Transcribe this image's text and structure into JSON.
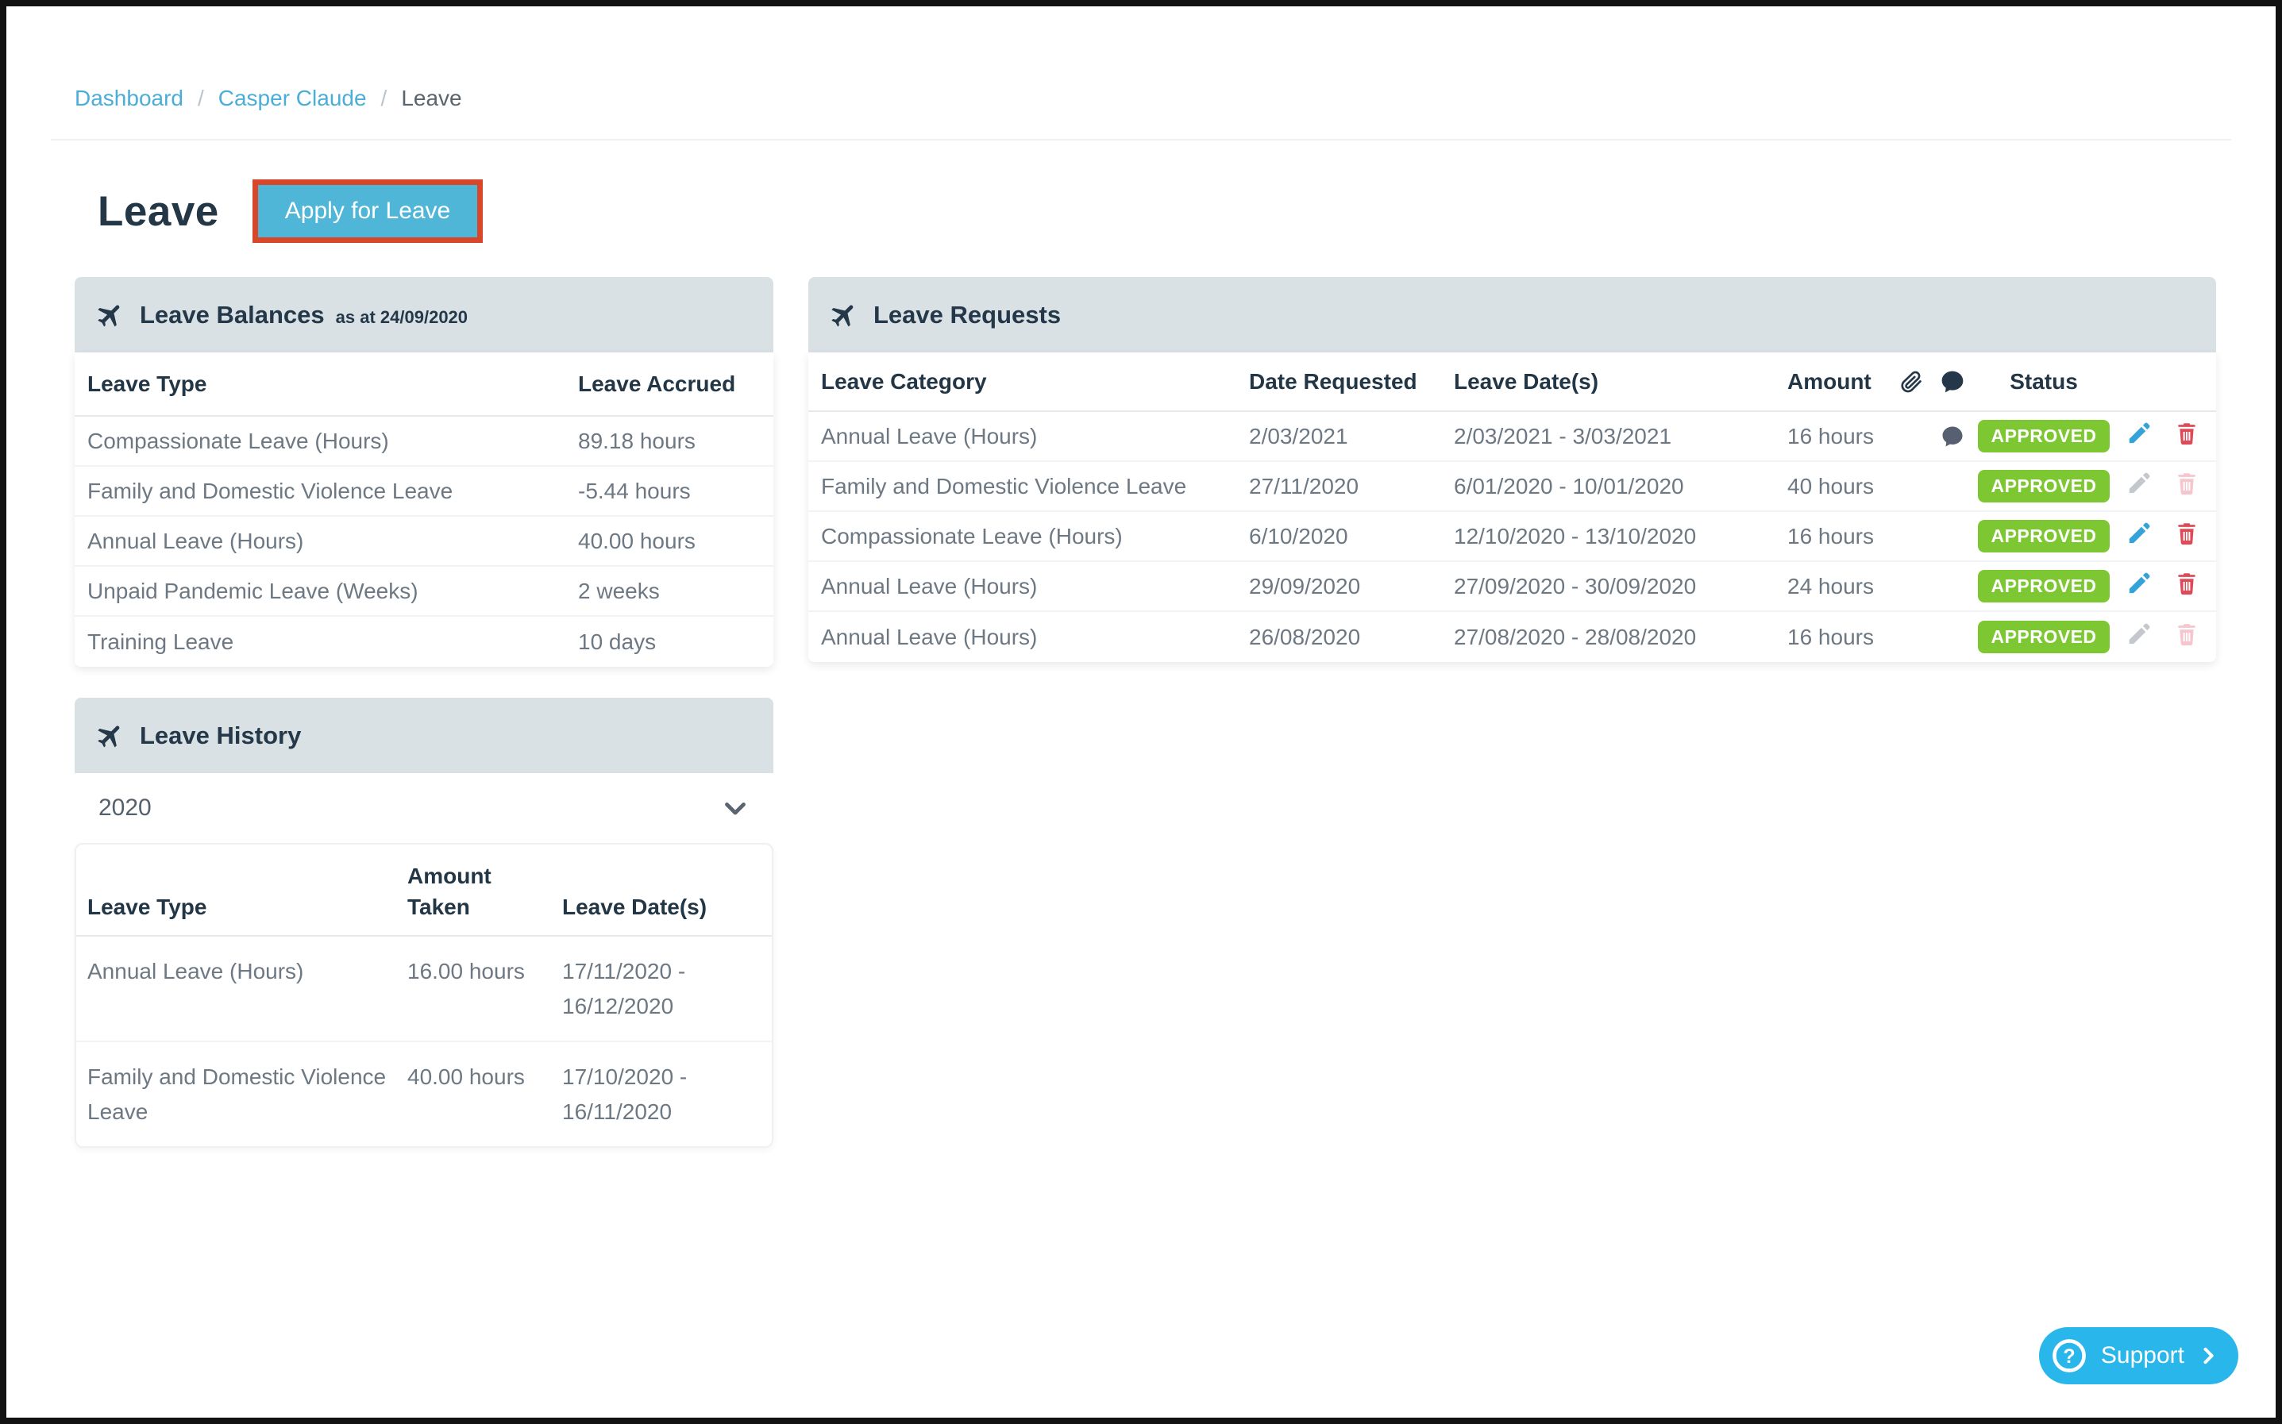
{
  "breadcrumb": {
    "separator": "/",
    "items": [
      {
        "label": "Dashboard",
        "type": "link"
      },
      {
        "label": "Casper Claude",
        "type": "link"
      },
      {
        "label": "Leave",
        "type": "current"
      }
    ]
  },
  "page": {
    "title": "Leave",
    "apply_button_label": "Apply for Leave"
  },
  "leave_balances": {
    "title": "Leave Balances",
    "subtitle": "as at 24/09/2020",
    "columns": [
      "Leave Type",
      "Leave Accrued"
    ],
    "rows": [
      {
        "leave_type": "Compassionate Leave (Hours)",
        "leave_accrued": "89.18 hours"
      },
      {
        "leave_type": "Family and Domestic Violence Leave",
        "leave_accrued": "-5.44 hours"
      },
      {
        "leave_type": "Annual Leave (Hours)",
        "leave_accrued": "40.00 hours"
      },
      {
        "leave_type": "Unpaid Pandemic Leave (Weeks)",
        "leave_accrued": "2 weeks"
      },
      {
        "leave_type": "Training Leave",
        "leave_accrued": "10 days"
      }
    ]
  },
  "leave_requests": {
    "title": "Leave Requests",
    "columns": {
      "category": "Leave Category",
      "date_requested": "Date Requested",
      "leave_dates": "Leave Date(s)",
      "amount": "Amount",
      "attachments_icon": "attachment-icon",
      "comments_icon": "comment-icon",
      "status": "Status"
    },
    "rows": [
      {
        "category": "Annual Leave (Hours)",
        "date_requested": "2/03/2021",
        "leave_dates": "2/03/2021 - 3/03/2021",
        "amount": "16 hours",
        "has_comment": true,
        "status": "APPROVED",
        "can_edit": true,
        "can_delete": true
      },
      {
        "category": "Family and Domestic Violence Leave",
        "date_requested": "27/11/2020",
        "leave_dates": "6/01/2020 - 10/01/2020",
        "amount": "40 hours",
        "has_comment": false,
        "status": "APPROVED",
        "can_edit": false,
        "can_delete": false
      },
      {
        "category": "Compassionate Leave (Hours)",
        "date_requested": "6/10/2020",
        "leave_dates": "12/10/2020 - 13/10/2020",
        "amount": "16 hours",
        "has_comment": false,
        "status": "APPROVED",
        "can_edit": true,
        "can_delete": true
      },
      {
        "category": "Annual Leave (Hours)",
        "date_requested": "29/09/2020",
        "leave_dates": "27/09/2020 - 30/09/2020",
        "amount": "24 hours",
        "has_comment": false,
        "status": "APPROVED",
        "can_edit": true,
        "can_delete": true
      },
      {
        "category": "Annual Leave (Hours)",
        "date_requested": "26/08/2020",
        "leave_dates": "27/08/2020 - 28/08/2020",
        "amount": "16 hours",
        "has_comment": false,
        "status": "APPROVED",
        "can_edit": false,
        "can_delete": false
      }
    ]
  },
  "leave_history": {
    "title": "Leave History",
    "year": "2020",
    "columns": [
      "Leave Type",
      "Amount Taken",
      "Leave Date(s)"
    ],
    "rows": [
      {
        "leave_type": "Annual Leave (Hours)",
        "amount_taken": "16.00 hours",
        "leave_dates": "17/11/2020 - 16/12/2020"
      },
      {
        "leave_type": "Family and Domestic Violence Leave",
        "amount_taken": "40.00 hours",
        "leave_dates": "17/10/2020 - 16/11/2020"
      }
    ]
  },
  "support": {
    "label": "Support"
  },
  "colors": {
    "accent_blue": "#4fb6d8",
    "annotation_red": "#d9472b",
    "link_blue": "#4aaed9",
    "navy": "#24384a",
    "panel_header_bg": "#dae1e5",
    "status_green": "#7dc832",
    "edit_blue": "#35a3d8",
    "delete_red": "#dd4b59",
    "support_cyan": "#29b6ea",
    "body_text_gray": "#6d7883"
  }
}
